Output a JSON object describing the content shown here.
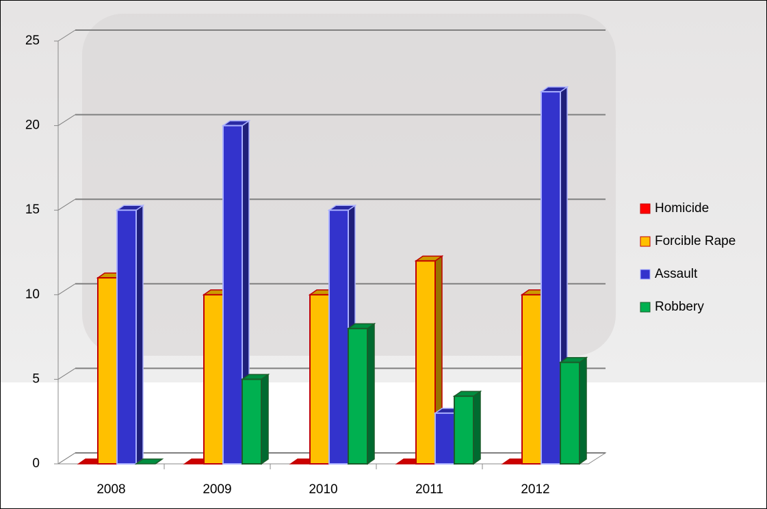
{
  "chart_data": {
    "type": "bar3d",
    "categories": [
      "2008",
      "2009",
      "2010",
      "2011",
      "2012"
    ],
    "series": [
      {
        "name": "Homicide",
        "color": "#ff0000",
        "values": [
          0,
          0,
          0,
          0,
          0
        ]
      },
      {
        "name": "Forcible Rape",
        "color": "#ffc000",
        "values": [
          11,
          10,
          10,
          12,
          10
        ]
      },
      {
        "name": "Assault",
        "color": "#3333cc",
        "values": [
          15,
          20,
          15,
          3,
          22
        ]
      },
      {
        "name": "Robbery",
        "color": "#00b050",
        "values": [
          0,
          5,
          8,
          4,
          6
        ]
      }
    ],
    "ylim": [
      0,
      25
    ],
    "yticks": [
      0,
      5,
      10,
      15,
      20,
      25
    ],
    "grid": true,
    "legend": "right"
  }
}
